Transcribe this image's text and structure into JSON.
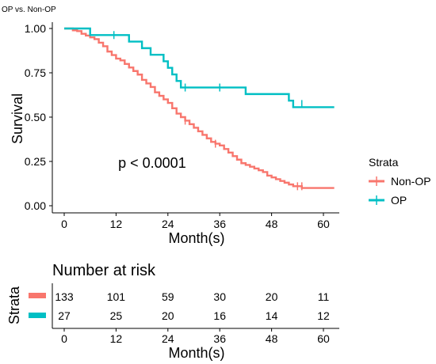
{
  "chart_data": [
    {
      "type": "line",
      "chart_kind": "kaplan-meier",
      "title": "OP vs. Non-OP",
      "xlabel": "Month(s)",
      "ylabel": "Survival",
      "xlim": [
        0,
        62
      ],
      "ylim": [
        0,
        1
      ],
      "xticks": [
        0,
        12,
        24,
        36,
        48,
        60
      ],
      "xtick_labels": [
        "0",
        "12",
        "24",
        "36",
        "48",
        "60"
      ],
      "yticks": [
        0,
        0.25,
        0.5,
        0.75,
        1
      ],
      "ytick_labels": [
        "0.00",
        "0.25",
        "0.50",
        "0.75",
        "1.00"
      ],
      "grid": false,
      "legend": {
        "title": "Strata",
        "position": "right"
      },
      "annotation": "p < 0.0001",
      "annotation_at": {
        "x": 12.5,
        "y": 0.2
      },
      "series": [
        {
          "name": "Non-OP",
          "color": "#F8766D",
          "step": [
            [
              0,
              1.0
            ],
            [
              2,
              0.99
            ],
            [
              3,
              0.985
            ],
            [
              4,
              0.97
            ],
            [
              5,
              0.96
            ],
            [
              6,
              0.95
            ],
            [
              7,
              0.94
            ],
            [
              8,
              0.92
            ],
            [
              9,
              0.9
            ],
            [
              10,
              0.87
            ],
            [
              11,
              0.85
            ],
            [
              12,
              0.83
            ],
            [
              13,
              0.82
            ],
            [
              14,
              0.8
            ],
            [
              15,
              0.78
            ],
            [
              16,
              0.76
            ],
            [
              17,
              0.74
            ],
            [
              18,
              0.71
            ],
            [
              19,
              0.69
            ],
            [
              20,
              0.67
            ],
            [
              21,
              0.64
            ],
            [
              22,
              0.62
            ],
            [
              23,
              0.6
            ],
            [
              24,
              0.58
            ],
            [
              25,
              0.55
            ],
            [
              26,
              0.52
            ],
            [
              27,
              0.5
            ],
            [
              28,
              0.48
            ],
            [
              29,
              0.46
            ],
            [
              30,
              0.44
            ],
            [
              31,
              0.42
            ],
            [
              32,
              0.4
            ],
            [
              33,
              0.38
            ],
            [
              34,
              0.36
            ],
            [
              35,
              0.35
            ],
            [
              36,
              0.34
            ],
            [
              37,
              0.32
            ],
            [
              38,
              0.3
            ],
            [
              39,
              0.28
            ],
            [
              40,
              0.26
            ],
            [
              41,
              0.24
            ],
            [
              42,
              0.23
            ],
            [
              43,
              0.22
            ],
            [
              44,
              0.21
            ],
            [
              45,
              0.2
            ],
            [
              46,
              0.19
            ],
            [
              47,
              0.17
            ],
            [
              48,
              0.16
            ],
            [
              49,
              0.15
            ],
            [
              50,
              0.14
            ],
            [
              51,
              0.13
            ],
            [
              52,
              0.12
            ],
            [
              53,
              0.11
            ],
            [
              55,
              0.1
            ],
            [
              62.5,
              0.1
            ]
          ],
          "censored": [
            [
              28,
              0.48
            ],
            [
              35,
              0.35
            ],
            [
              54,
              0.11
            ],
            [
              55,
              0.11
            ]
          ]
        },
        {
          "name": "OP",
          "color": "#00BFC4",
          "step": [
            [
              0,
              1.0
            ],
            [
              6,
              0.963
            ],
            [
              15,
              0.926
            ],
            [
              18,
              0.889
            ],
            [
              20,
              0.852
            ],
            [
              23,
              0.815
            ],
            [
              24,
              0.778
            ],
            [
              25,
              0.741
            ],
            [
              26,
              0.704
            ],
            [
              27,
              0.667
            ],
            [
              42,
              0.63
            ],
            [
              52,
              0.593
            ],
            [
              53,
              0.556
            ],
            [
              62.5,
              0.556
            ]
          ],
          "censored": [
            [
              11.5,
              0.963
            ],
            [
              28,
              0.667
            ],
            [
              36,
              0.667
            ],
            [
              55,
              0.574
            ]
          ]
        }
      ]
    },
    {
      "type": "table",
      "title": "Number at risk",
      "xlabel": "Month(s)",
      "ylabel": "Strata",
      "times": [
        0,
        12,
        24,
        36,
        48,
        60
      ],
      "time_labels": [
        "0",
        "12",
        "24",
        "36",
        "48",
        "60"
      ],
      "rows": [
        {
          "name": "Non-OP",
          "color": "#F8766D",
          "values": [
            "133",
            "101",
            "59",
            "30",
            "20",
            "11"
          ]
        },
        {
          "name": "OP",
          "color": "#00BFC4",
          "values": [
            "27",
            "25",
            "20",
            "16",
            "14",
            "12"
          ]
        }
      ]
    }
  ]
}
